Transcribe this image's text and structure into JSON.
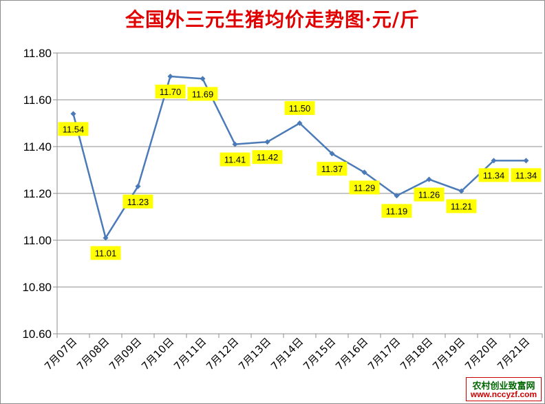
{
  "chart_data": {
    "type": "line",
    "title": "全国外三元生猪均价走势图·元/斤",
    "categories": [
      "7月07日",
      "7月08日",
      "7月09日",
      "7月10日",
      "7月11日",
      "7月12日",
      "7月13日",
      "7月14日",
      "7月15日",
      "7月16日",
      "7月17日",
      "7月18日",
      "7月19日",
      "7月20日",
      "7月21日"
    ],
    "values": [
      11.54,
      11.01,
      11.23,
      11.7,
      11.69,
      11.41,
      11.42,
      11.5,
      11.37,
      11.29,
      11.19,
      11.26,
      11.21,
      11.34,
      11.34
    ],
    "data_labels": [
      "11.54",
      "11.01",
      "11.23",
      "11.70",
      "11.69",
      "11.41",
      "11.42",
      "11.50",
      "11.37",
      "11.29",
      "11.19",
      "11.26",
      "11.21",
      "11.34",
      "11.34"
    ],
    "ylim": [
      10.6,
      11.8
    ],
    "yticks": [
      "10.60",
      "10.80",
      "11.00",
      "11.20",
      "11.40",
      "11.60",
      "11.80"
    ],
    "grid": true,
    "legend": "none",
    "line_color": "#4a7ab8",
    "label_bg": "#ffff00"
  },
  "watermark": {
    "line1": "农村创业致富网",
    "line2": "www.nccyzf.com"
  }
}
